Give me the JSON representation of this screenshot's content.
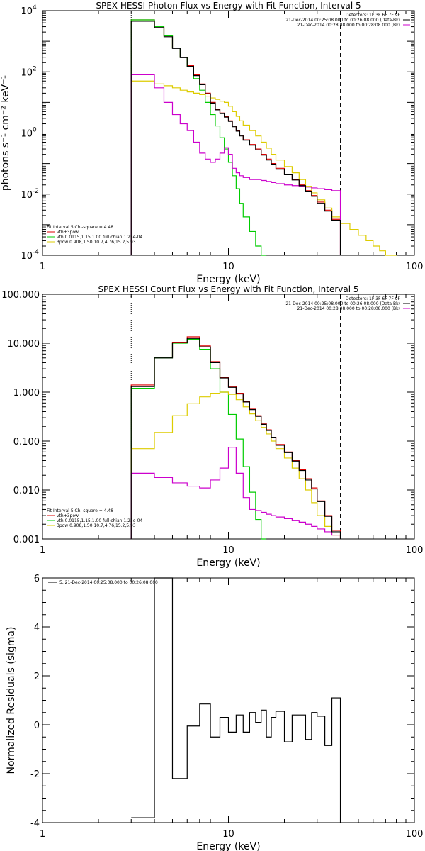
{
  "chart_data": [
    {
      "type": "line",
      "title": "SPEX HESSI Photon Flux vs Energy with Fit Function, Interval 5",
      "xlabel": "Energy (keV)",
      "ylabel": "photons s⁻¹ cm⁻² keV⁻¹",
      "xscale": "log",
      "yscale": "log",
      "xlim": [
        1,
        100
      ],
      "ylim": [
        0.0001,
        10000
      ],
      "xticks": [
        {
          "v": 1,
          "label": "1"
        },
        {
          "v": 10,
          "label": "10"
        },
        {
          "v": 100,
          "label": "100"
        }
      ],
      "yticks": [
        {
          "v": 10000,
          "label": "10",
          "exp": "4"
        },
        {
          "v": 100,
          "label": "10",
          "exp": "2"
        },
        {
          "v": 1,
          "label": "10",
          "exp": "0"
        },
        {
          "v": 0.01,
          "label": "10",
          "exp": "-2"
        },
        {
          "v": 0.0001,
          "label": "10",
          "exp": "-4"
        }
      ],
      "vlines": [
        {
          "x": 3,
          "style": "dotted"
        },
        {
          "x": 40,
          "style": "dashed"
        }
      ],
      "edges": [
        3,
        3.5,
        4,
        4.5,
        5,
        5.5,
        6,
        6.5,
        7,
        7.5,
        8,
        8.5,
        9,
        9.5,
        10,
        10.5,
        11,
        11.5,
        12,
        13,
        14,
        15,
        16,
        17,
        18,
        20,
        22,
        24,
        26,
        28,
        30,
        33,
        36,
        40,
        45,
        50,
        55,
        60,
        65,
        70,
        75,
        80
      ],
      "series": [
        {
          "name": "vth+3pow",
          "color": "#dd0000",
          "values": [
            5000,
            5000,
            3000,
            1500,
            600,
            300,
            160,
            80,
            40,
            20,
            10,
            6,
            4.5,
            3.4,
            2.5,
            1.7,
            1.2,
            0.85,
            0.6,
            0.42,
            0.3,
            0.2,
            0.14,
            0.1,
            0.07,
            0.045,
            0.03,
            0.02,
            0.013,
            0.009,
            0.0055,
            0.003,
            0.0015,
            null,
            null,
            null,
            null,
            null,
            null,
            null,
            null
          ]
        },
        {
          "name": "vth 0.0115,1.15,1.00  full chian 1.25e-04",
          "color": "#00cc00",
          "values": [
            5000,
            5000,
            3000,
            1500,
            600,
            300,
            150,
            60,
            25,
            10,
            4,
            1.7,
            0.7,
            0.3,
            0.11,
            0.04,
            0.015,
            0.005,
            0.0018,
            0.0006,
            0.0002,
            6e-05,
            null,
            null,
            null,
            null,
            null,
            null,
            null,
            null,
            null,
            null,
            null,
            null,
            null,
            null,
            null,
            null,
            null,
            null,
            null
          ]
        },
        {
          "name": "3pow 0.908,1.50,10.7,4.76,15.2,5.93",
          "color": "#ddcc00",
          "values": [
            50,
            50,
            40,
            35,
            30,
            25,
            22,
            20,
            18,
            16,
            14,
            12.5,
            11,
            10,
            7.5,
            5,
            3.5,
            2.5,
            1.8,
            1.2,
            0.8,
            0.5,
            0.32,
            0.2,
            0.13,
            0.08,
            0.05,
            0.03,
            0.018,
            0.011,
            0.0065,
            0.0035,
            0.0018,
            0.0011,
            0.0007,
            0.00045,
            0.0003,
            0.0002,
            0.00014,
            0.0001,
            7e-05
          ]
        },
        {
          "name": "21-Dec-2014 00:28:08.000 to 00:28:08.000 (Bk)",
          "color": "#cc00cc",
          "values": [
            80,
            80,
            30,
            10,
            4,
            2,
            1.2,
            0.5,
            0.22,
            0.14,
            0.11,
            0.14,
            0.22,
            0.33,
            0.2,
            0.07,
            0.05,
            0.04,
            0.035,
            0.03,
            0.03,
            0.028,
            0.026,
            0.024,
            0.022,
            0.02,
            0.019,
            0.018,
            0.017,
            0.016,
            0.015,
            0.014,
            0.013,
            null,
            null,
            null,
            null,
            null,
            null,
            null,
            null
          ]
        },
        {
          "name": "21-Dec-2014 00:25:08.000 to 00:26:08.000 (Data-Bk)",
          "color": "#000000",
          "values": [
            4500,
            4500,
            2800,
            1400,
            580,
            290,
            150,
            75,
            38,
            19,
            9.5,
            5.7,
            4.3,
            3.3,
            2.4,
            1.6,
            1.15,
            0.8,
            0.58,
            0.4,
            0.28,
            0.19,
            0.13,
            0.095,
            0.065,
            0.043,
            0.029,
            0.019,
            0.012,
            0.0085,
            0.005,
            0.0028,
            0.0014,
            null,
            null,
            null,
            null,
            null,
            null,
            null,
            null
          ]
        }
      ],
      "legend_top": [
        "Detectors: 1F 3F 6F 7F 9F",
        "21-Dec-2014 00:25:08.000 to 00:26:08.000 (Data-Bk)",
        "21-Dec-2014 00:28:08.000 to 00:28:08.000 (Bk)"
      ],
      "legend_bottom": [
        "Fit Interval 5   Chi-square = 4.48",
        "vth+3pow",
        "vth 0.0115,1.15,1.00  full chian 1.25e-04",
        "3pow 0.908,1.50,10.7,4.76,15.2,5.93"
      ]
    },
    {
      "type": "line",
      "title": "SPEX HESSI Count Flux vs Energy with Fit Function, Interval 5",
      "xlabel": "Energy (keV)",
      "ylabel": "",
      "xscale": "log",
      "yscale": "log",
      "xlim": [
        1,
        100
      ],
      "ylim": [
        0.001,
        100
      ],
      "xticks": [
        {
          "v": 1,
          "label": "1"
        },
        {
          "v": 10,
          "label": "10"
        },
        {
          "v": 100,
          "label": "100"
        }
      ],
      "yticks": [
        {
          "v": 100,
          "label": "100.000"
        },
        {
          "v": 10,
          "label": "10.000"
        },
        {
          "v": 1,
          "label": "1.000"
        },
        {
          "v": 0.1,
          "label": "0.100"
        },
        {
          "v": 0.01,
          "label": "0.010"
        },
        {
          "v": 0.001,
          "label": "0.001"
        }
      ],
      "vlines": [
        {
          "x": 3,
          "style": "dotted"
        },
        {
          "x": 40,
          "style": "dashed"
        }
      ],
      "edges": [
        3,
        4,
        5,
        6,
        7,
        8,
        9,
        10,
        11,
        12,
        13,
        14,
        15,
        16,
        17,
        18,
        20,
        22,
        24,
        26,
        28,
        30,
        33,
        36,
        40
      ],
      "series": [
        {
          "name": "vth+3pow",
          "color": "#dd0000",
          "values": [
            1.4,
            5.2,
            10.5,
            13.5,
            8.8,
            4.2,
            2.0,
            1.3,
            0.95,
            0.65,
            0.45,
            0.33,
            0.23,
            0.17,
            0.12,
            0.085,
            0.06,
            0.04,
            0.026,
            0.017,
            0.011,
            0.006,
            0.003,
            0.0015
          ]
        },
        {
          "name": "vth 0.0115,1.15,1.00  full chian 1.25e-04",
          "color": "#00cc00",
          "values": [
            1.2,
            5.0,
            10.0,
            12.0,
            7.5,
            3.0,
            1.0,
            0.35,
            0.11,
            0.03,
            0.009,
            0.0025,
            0.0009,
            null,
            null,
            null,
            null,
            null,
            null,
            null,
            null,
            null,
            null,
            null
          ]
        },
        {
          "name": "3pow 0.908,1.50,10.7,4.76,15.2,5.93",
          "color": "#ddcc00",
          "values": [
            0.07,
            0.15,
            0.33,
            0.58,
            0.8,
            0.95,
            1.0,
            0.9,
            0.7,
            0.5,
            0.36,
            0.26,
            0.19,
            0.14,
            0.1,
            0.07,
            0.045,
            0.028,
            0.017,
            0.01,
            0.0055,
            0.003,
            0.0018,
            0.0012
          ]
        },
        {
          "name": "21-Dec-2014 00:28:08.000 to 00:28:08.000 (Bk)",
          "color": "#cc00cc",
          "values": [
            0.022,
            0.018,
            0.014,
            0.012,
            0.011,
            0.016,
            0.028,
            0.075,
            0.022,
            0.007,
            0.004,
            0.0038,
            0.0035,
            0.0032,
            0.003,
            0.0028,
            0.0026,
            0.0024,
            0.0022,
            0.002,
            0.0018,
            0.0016,
            0.0014,
            0.0012
          ]
        },
        {
          "name": "21-Dec-2014 00:25:08.000 to 00:26:08.000 (Data-Bk)",
          "color": "#000000",
          "values": [
            1.3,
            5.0,
            10.2,
            12.5,
            8.4,
            4.0,
            1.95,
            1.25,
            0.92,
            0.63,
            0.44,
            0.32,
            0.22,
            0.165,
            0.12,
            0.082,
            0.058,
            0.039,
            0.025,
            0.016,
            0.0105,
            0.0058,
            0.0029,
            0.0014
          ]
        }
      ],
      "legend_top": [
        "Detectors: 1F 3F 6F 7F 9F",
        "21-Dec-2014 00:25:08.000 to 00:26:08.000 (Data-Bk)",
        "21-Dec-2014 00:28:08.000 to 00:28:08.000 (Bk)"
      ],
      "legend_bottom": [
        "Fit Interval 5   Chi-square = 4.48",
        "vth+3pow",
        "vth 0.0115,1.15,1.00  full chian 1.25e-04",
        "3pow 0.908,1.50,10.7,4.76,15.2,5.93"
      ]
    },
    {
      "type": "line",
      "title": "",
      "xlabel": "Energy (keV)",
      "ylabel": "Normalized Residuals (sigma)",
      "xscale": "log",
      "yscale": "linear",
      "xlim": [
        1,
        100
      ],
      "ylim": [
        -4,
        6
      ],
      "xticks": [
        {
          "v": 1,
          "label": "1"
        },
        {
          "v": 10,
          "label": "10"
        },
        {
          "v": 100,
          "label": "100"
        }
      ],
      "yticks": [
        {
          "v": 6,
          "label": "6"
        },
        {
          "v": 4,
          "label": "4"
        },
        {
          "v": 2,
          "label": "2"
        },
        {
          "v": 0,
          "label": "0"
        },
        {
          "v": -2,
          "label": "-2"
        },
        {
          "v": -4,
          "label": "-4"
        }
      ],
      "edges": [
        3,
        4,
        5,
        6,
        7,
        8,
        9,
        10,
        11,
        12,
        13,
        14,
        15,
        16,
        17,
        18,
        20,
        22,
        24,
        26,
        28,
        30,
        33,
        36,
        40
      ],
      "series": [
        {
          "name": "5, 21-Dec-2014 00:25:08.000 to 00:26:08.000",
          "color": "#000000",
          "values": [
            -3.8,
            6.0,
            -2.2,
            -0.05,
            0.85,
            -0.5,
            0.3,
            -0.3,
            0.4,
            -0.3,
            0.5,
            0.1,
            0.6,
            -0.5,
            0.3,
            0.55,
            -0.7,
            0.4,
            0.4,
            -0.6,
            0.5,
            0.35,
            -0.85,
            1.1
          ]
        }
      ],
      "legend_top": [
        "5, 21-Dec-2014 00:25:08.000 to 00:26:08.000"
      ],
      "legend_bottom": []
    }
  ]
}
